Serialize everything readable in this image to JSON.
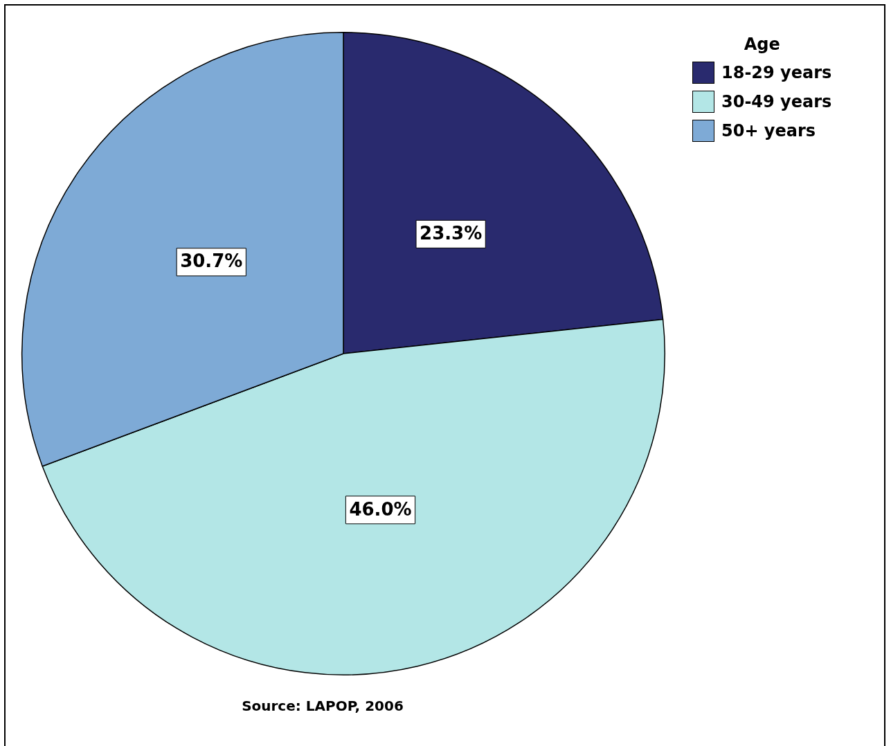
{
  "chart_data": {
    "type": "pie",
    "legend_title": "Age",
    "categories": [
      "18-29 years",
      "30-49 years",
      "50+ years"
    ],
    "values": [
      23.3,
      46.0,
      30.7
    ],
    "value_labels": [
      "23.3%",
      "46.0%",
      "30.7%"
    ],
    "colors": [
      "#292a6e",
      "#b3e6e6",
      "#7eaad6"
    ],
    "legend": "top right",
    "annotations": [
      "Source: LAPOP, 2006"
    ]
  }
}
